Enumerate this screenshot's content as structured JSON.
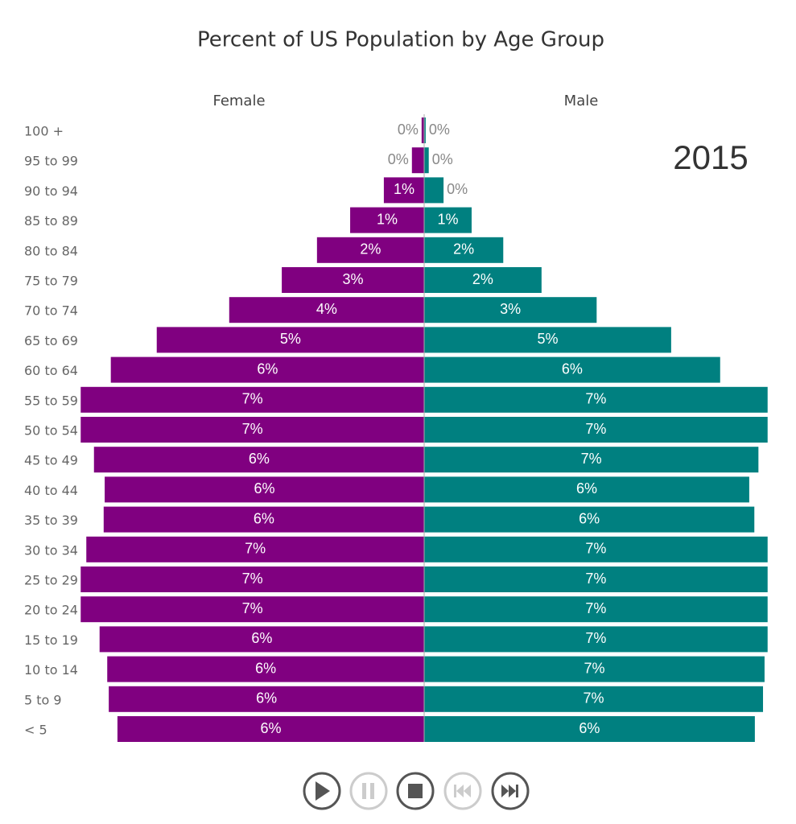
{
  "chart_data": {
    "type": "pyramid",
    "title": "Percent of US Population by Age Group",
    "annotation": "2015",
    "categories": [
      "100 +",
      "95 to 99",
      "90 to 94",
      "85 to 89",
      "80 to 84",
      "75 to 79",
      "70 to 74",
      "65 to 69",
      "60 to 64",
      "55 to 59",
      "50 to 54",
      "45 to 49",
      "40 to 44",
      "35 to 39",
      "30 to 34",
      "25 to 29",
      "20 to 24",
      "15 to 19",
      "10 to 14",
      "5 to 9",
      "< 5"
    ],
    "xlim": [
      0,
      6.75
    ],
    "series": [
      {
        "name": "Female",
        "color": "#800080",
        "values": [
          0.05,
          0.24,
          0.79,
          1.45,
          2.1,
          2.79,
          3.82,
          5.24,
          6.14,
          6.73,
          6.73,
          6.47,
          6.26,
          6.28,
          6.62,
          6.73,
          6.73,
          6.36,
          6.21,
          6.18,
          6.01
        ],
        "value_labels": [
          "0%",
          "0%",
          "1%",
          "1%",
          "2%",
          "3%",
          "4%",
          "5%",
          "6%",
          "7%",
          "7%",
          "6%",
          "6%",
          "6%",
          "7%",
          "7%",
          "7%",
          "6%",
          "6%",
          "6%",
          "6%"
        ]
      },
      {
        "name": "Male",
        "color": "#008080",
        "values": [
          0.03,
          0.09,
          0.38,
          0.93,
          1.55,
          2.3,
          3.38,
          4.84,
          5.8,
          6.73,
          6.73,
          6.55,
          6.37,
          6.47,
          6.73,
          6.73,
          6.73,
          6.73,
          6.67,
          6.64,
          6.48
        ],
        "value_labels": [
          "0%",
          "0%",
          "0%",
          "1%",
          "2%",
          "2%",
          "3%",
          "5%",
          "6%",
          "7%",
          "7%",
          "7%",
          "6%",
          "6%",
          "7%",
          "7%",
          "7%",
          "7%",
          "7%",
          "7%",
          "6%"
        ]
      }
    ]
  }
}
